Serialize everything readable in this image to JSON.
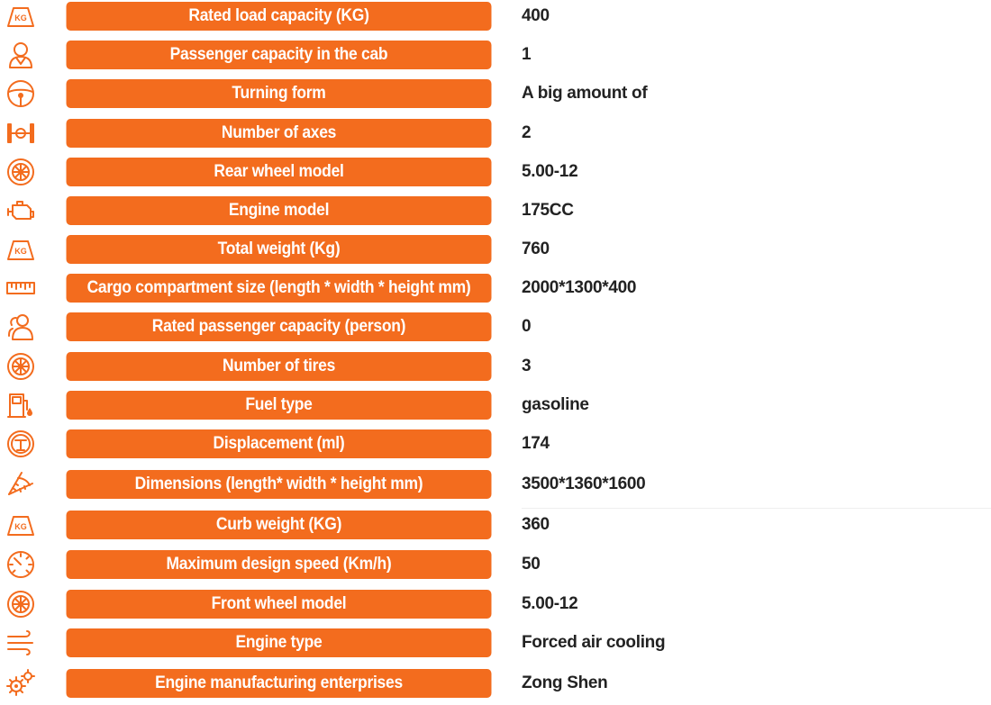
{
  "specs": [
    {
      "icon": "kg-weight-icon",
      "label": "Rated load capacity (KG)",
      "value": "400"
    },
    {
      "icon": "passenger-icon",
      "label": "Passenger capacity in the cab",
      "value": "1"
    },
    {
      "icon": "steering-wheel-icon",
      "label": "Turning form",
      "value": "A big amount of"
    },
    {
      "icon": "axle-icon",
      "label": "Number of axes",
      "value": "2"
    },
    {
      "icon": "wheel-icon",
      "label": "Rear wheel model",
      "value": "5.00-12"
    },
    {
      "icon": "engine-icon",
      "label": "Engine model",
      "value": "175CC"
    },
    {
      "icon": "kg-weight-icon",
      "label": "Total weight (Kg)",
      "value": "760"
    },
    {
      "icon": "ruler-icon",
      "label": "Cargo compartment size (length * width * height mm)",
      "value": "2000*1300*400"
    },
    {
      "icon": "persons-icon",
      "label": "Rated passenger capacity (person)",
      "value": "0"
    },
    {
      "icon": "wheel-icon",
      "label": "Number of tires",
      "value": "3"
    },
    {
      "icon": "fuel-pump-icon",
      "label": "Fuel type",
      "value": "gasoline"
    },
    {
      "icon": "displacement-icon",
      "label": "Displacement (ml)",
      "value": "174"
    },
    {
      "icon": "protractor-icon",
      "label": "Dimensions (length* width * height mm)",
      "value": "3500*1360*1600"
    },
    {
      "icon": "kg-weight-icon",
      "label": "Curb weight (KG)",
      "value": "360"
    },
    {
      "icon": "speedometer-icon",
      "label": "Maximum design speed (Km/h)",
      "value": "50"
    },
    {
      "icon": "wheel-icon",
      "label": "Front wheel model",
      "value": "5.00-12"
    },
    {
      "icon": "air-cooling-icon",
      "label": "Engine type",
      "value": "Forced air cooling"
    },
    {
      "icon": "gears-icon",
      "label": "Engine manufacturing enterprises",
      "value": "Zong Shen"
    }
  ],
  "colors": {
    "accent": "#f36c1e",
    "value_text": "#222222",
    "label_text": "#ffffff"
  },
  "kg_icon_text": "KG"
}
